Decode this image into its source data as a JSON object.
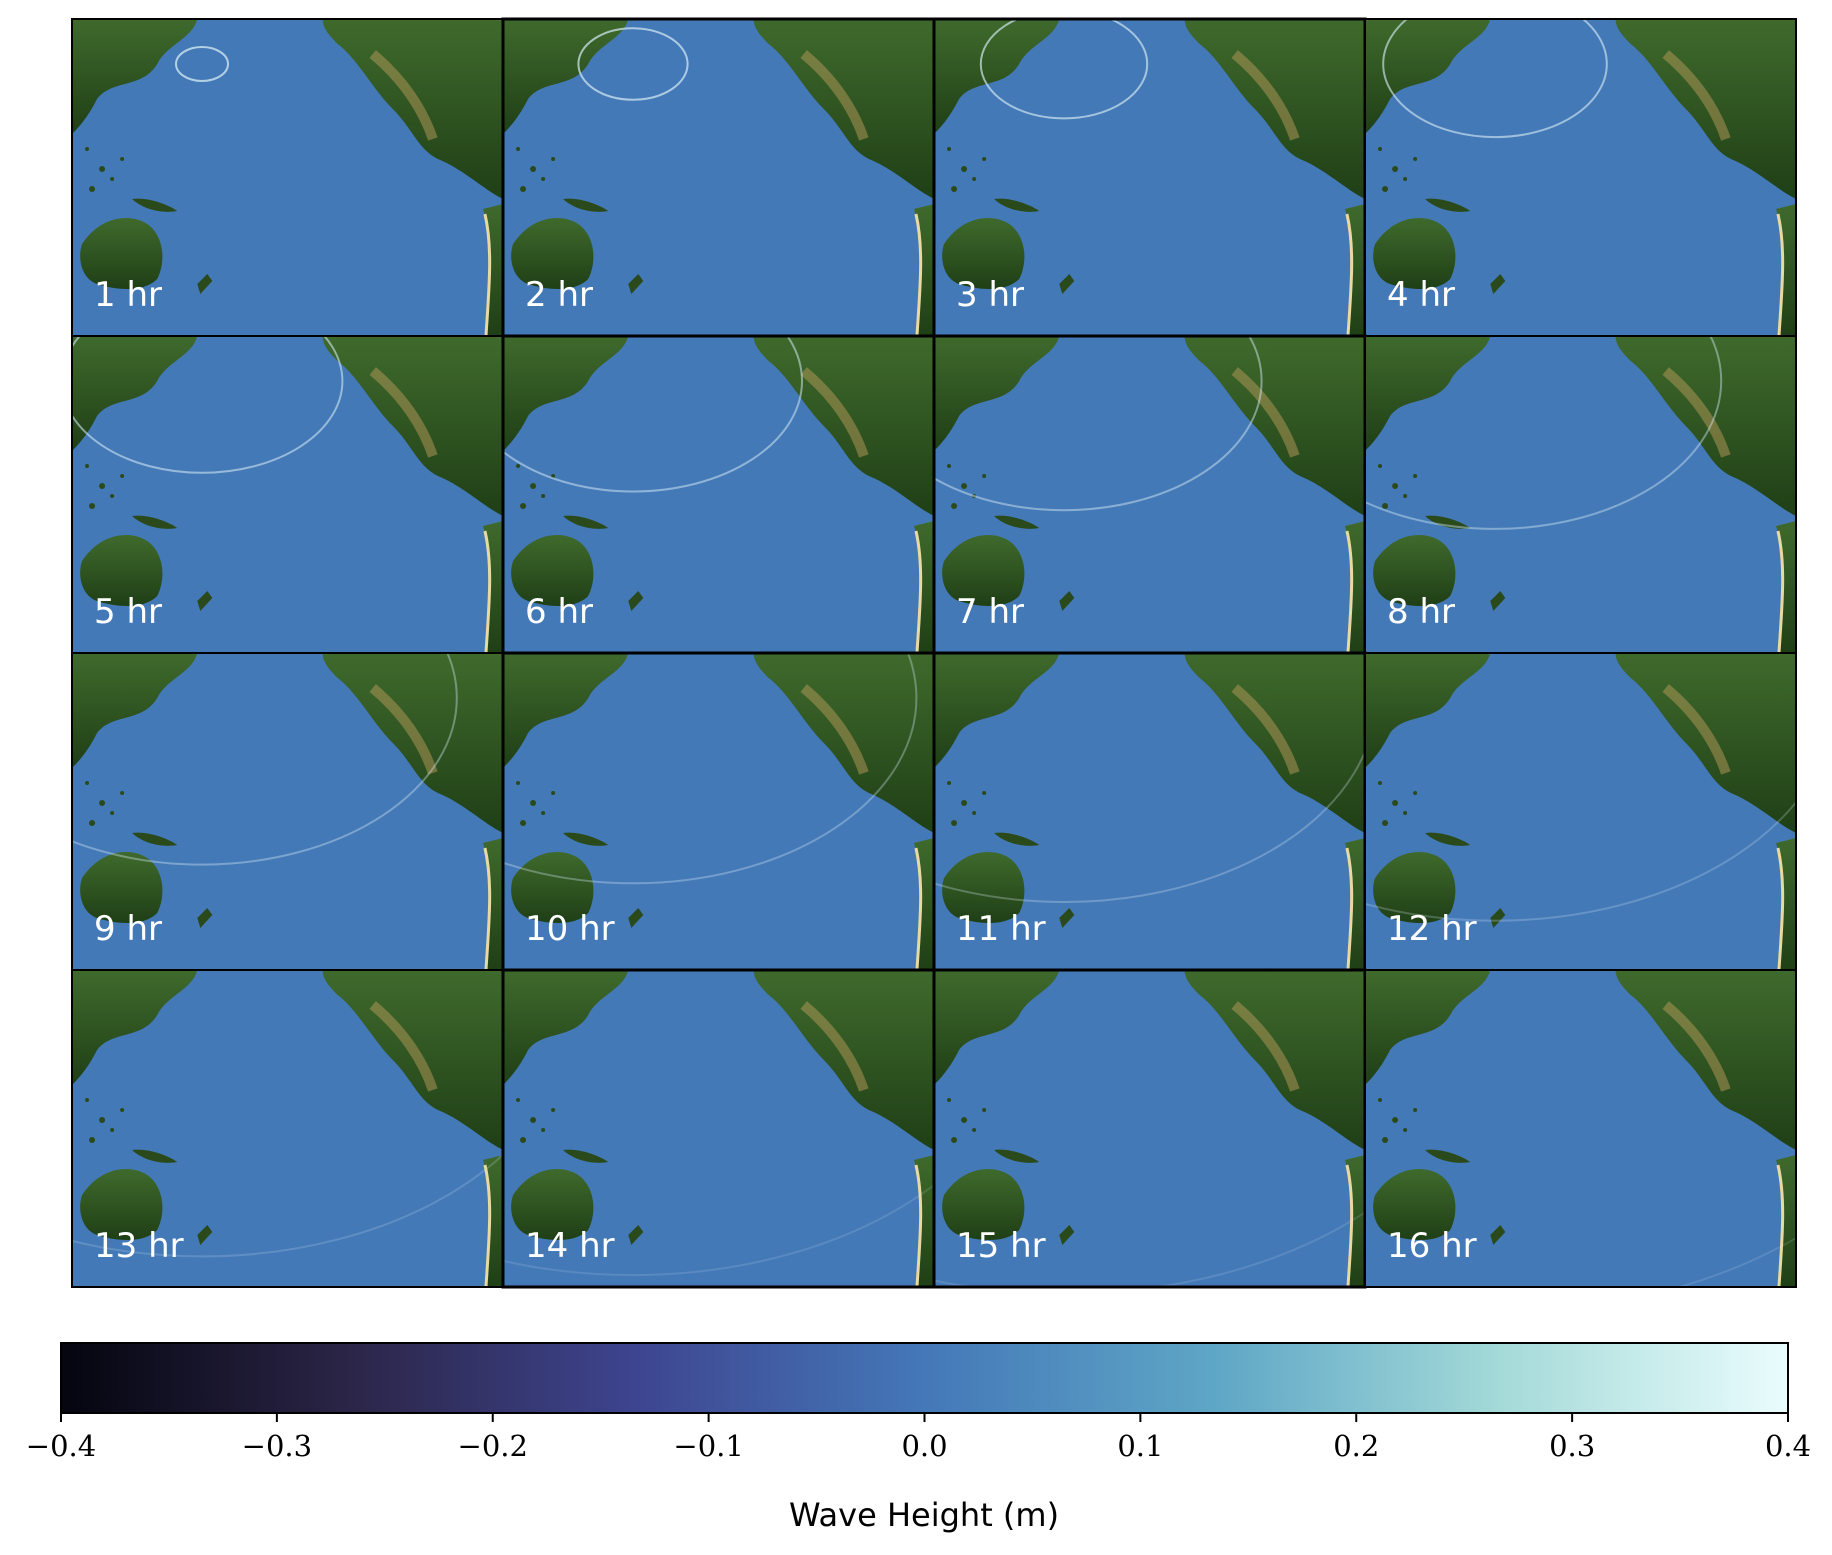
{
  "chart_data": {
    "type": "map-panels",
    "panels": [
      "1 hr",
      "2 hr",
      "3 hr",
      "4 hr",
      "5 hr",
      "6 hr",
      "7 hr",
      "8 hr",
      "9 hr",
      "10 hr",
      "11 hr",
      "12 hr",
      "13 hr",
      "14 hr",
      "15 hr",
      "16 hr"
    ],
    "colorbar": {
      "label": "Wave Height (m)",
      "xlim": [
        -0.4,
        0.4
      ],
      "xticks": [
        {
          "value": -0.4,
          "label": "−0.4"
        },
        {
          "value": -0.3,
          "label": "−0.3"
        },
        {
          "value": -0.2,
          "label": "−0.2"
        },
        {
          "value": -0.1,
          "label": "−0.1"
        },
        {
          "value": 0,
          "label": "0.0"
        },
        0.1,
        0.2,
        0.3,
        0.4
      ],
      "colors": [
        "#04050f",
        "#2b2547",
        "#3e4590",
        "#4478b8",
        "#5ea6c6",
        "#a4dad8",
        "#eafcfd"
      ]
    }
  }
}
